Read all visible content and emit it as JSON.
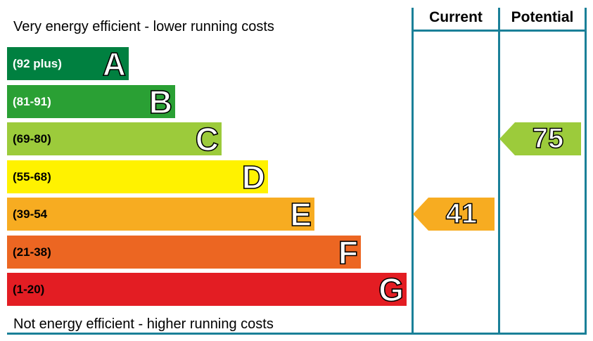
{
  "chart_data": {
    "type": "bar",
    "top_caption": "Very energy efficient - lower running costs",
    "bottom_caption": "Not energy efficient - higher running costs",
    "columns": [
      "Current",
      "Potential"
    ],
    "bands": [
      {
        "letter": "A",
        "range": "(92 plus)",
        "min": 92,
        "max": 100,
        "color": "#008040",
        "text_color": "#ffffff"
      },
      {
        "letter": "B",
        "range": "(81-91)",
        "min": 81,
        "max": 91,
        "color": "#2aa034",
        "text_color": "#ffffff"
      },
      {
        "letter": "C",
        "range": "(69-80)",
        "min": 69,
        "max": 80,
        "color": "#9ccb3b",
        "text_color": "#000000"
      },
      {
        "letter": "D",
        "range": "(55-68)",
        "min": 55,
        "max": 68,
        "color": "#fff200",
        "text_color": "#000000"
      },
      {
        "letter": "E",
        "range": "(39-54",
        "min": 39,
        "max": 54,
        "color": "#f7ac21",
        "text_color": "#000000"
      },
      {
        "letter": "F",
        "range": "(21-38)",
        "min": 21,
        "max": 38,
        "color": "#ec6622",
        "text_color": "#000000"
      },
      {
        "letter": "G",
        "range": "(1-20)",
        "min": 1,
        "max": 20,
        "color": "#e31d23",
        "text_color": "#000000"
      }
    ],
    "current": {
      "value": 41,
      "band": "E",
      "color": "#f7ac21"
    },
    "potential": {
      "value": 75,
      "band": "C",
      "color": "#9ccb3b"
    }
  }
}
